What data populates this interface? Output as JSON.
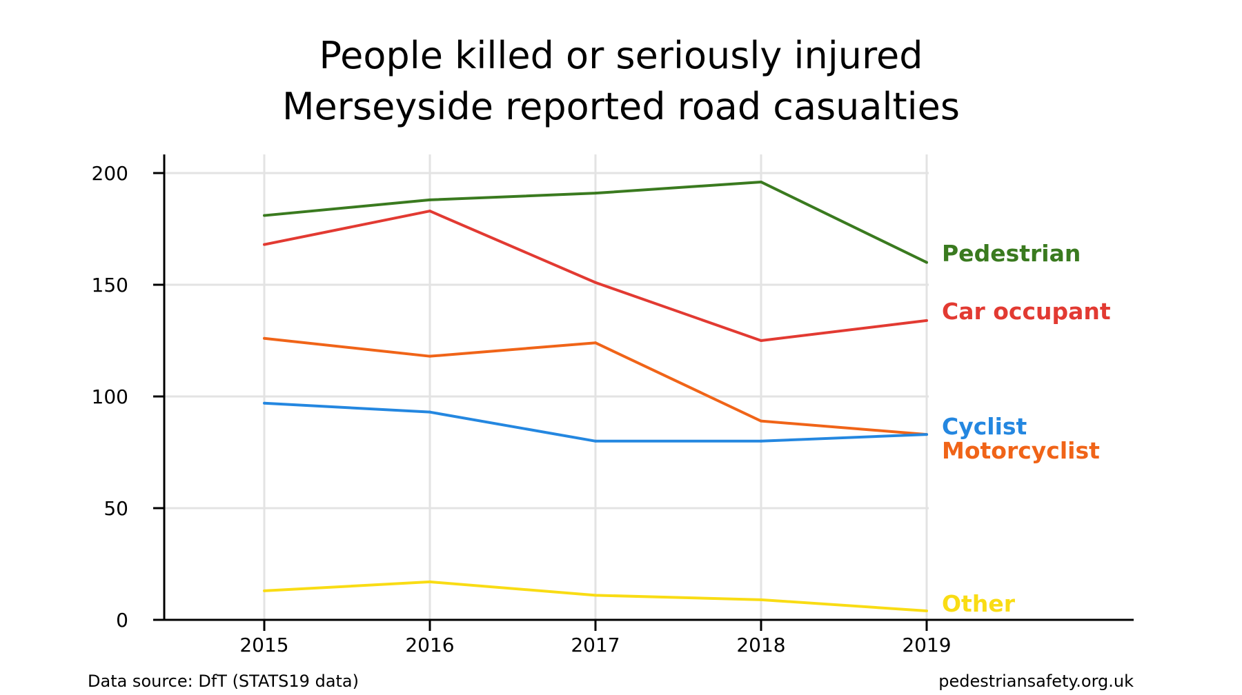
{
  "chart_data": {
    "type": "line",
    "title": "People killed or seriously injured",
    "subtitle": "Merseyside reported road casualties",
    "x": [
      "2015",
      "2016",
      "2017",
      "2018",
      "2019"
    ],
    "ylim": [
      0,
      200
    ],
    "yticks": [
      "0",
      "50",
      "100",
      "150",
      "200"
    ],
    "grid": true,
    "legend": "direct labels at line ends",
    "series": [
      {
        "name": "Pedestrian",
        "color": "#3a7a1f",
        "values": [
          181,
          188,
          191,
          196,
          160
        ]
      },
      {
        "name": "Car occupant",
        "color": "#e23a32",
        "values": [
          168,
          183,
          151,
          125,
          134
        ]
      },
      {
        "name": "Motorcyclist",
        "color": "#f06418",
        "values": [
          126,
          118,
          124,
          89,
          83
        ]
      },
      {
        "name": "Cyclist",
        "color": "#2487e0",
        "values": [
          97,
          93,
          80,
          80,
          83
        ]
      },
      {
        "name": "Other",
        "color": "#f9dc14",
        "values": [
          13,
          17,
          11,
          9,
          4
        ]
      }
    ]
  },
  "footer": {
    "source": "Data source: DfT (STATS19 data)",
    "site": "pedestriansafety.org.uk"
  }
}
